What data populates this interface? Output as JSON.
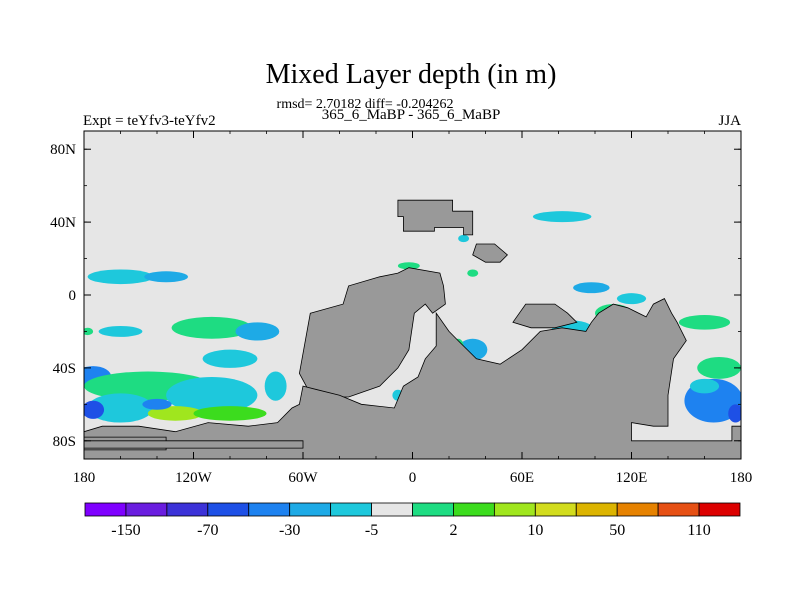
{
  "chart_data": {
    "type": "heatmap",
    "title": "Mixed Layer depth (in m)",
    "stats_line": "rmsd= 2.70182 diff= -0.204262",
    "left_label": "Expt = teYfv3-teYfv2",
    "center_label": "365_6_MaBP - 365_6_MaBP",
    "right_label": "JJA",
    "xlim": [
      -180,
      180
    ],
    "ylim": [
      -90,
      90
    ],
    "x_ticks": [
      {
        "value": -180,
        "label": "180"
      },
      {
        "value": -120,
        "label": "120W"
      },
      {
        "value": -60,
        "label": "60W"
      },
      {
        "value": 0,
        "label": "0"
      },
      {
        "value": 60,
        "label": "60E"
      },
      {
        "value": 120,
        "label": "120E"
      },
      {
        "value": 180,
        "label": "180"
      }
    ],
    "y_ticks": [
      {
        "value": 80,
        "label": "80N"
      },
      {
        "value": 40,
        "label": "40N"
      },
      {
        "value": 0,
        "label": "0"
      },
      {
        "value": -40,
        "label": "40S"
      },
      {
        "value": -80,
        "label": "80S"
      }
    ],
    "colors": {
      "background_field": "#e6e6e6",
      "land": "#999999"
    },
    "colorbar": {
      "colors": [
        "#7f00ff",
        "#6a1ddf",
        "#3c32d8",
        "#1e50e6",
        "#1e82f0",
        "#1eaae6",
        "#1ec8dc",
        "#e6e6e6",
        "#1edc82",
        "#3cdc1e",
        "#a0e61e",
        "#d2dc1e",
        "#dcb400",
        "#e68200",
        "#e65014",
        "#dc0000"
      ],
      "labels": [
        {
          "after_box": 1,
          "label": "-150"
        },
        {
          "after_box": 3,
          "label": "-70"
        },
        {
          "after_box": 5,
          "label": "-30"
        },
        {
          "after_box": 7,
          "label": "-5"
        },
        {
          "after_box": 9,
          "label": "2"
        },
        {
          "after_box": 11,
          "label": "10"
        },
        {
          "after_box": 13,
          "label": "50"
        },
        {
          "after_box": 15,
          "label": "110"
        }
      ]
    },
    "land_polygons": [
      [
        [
          -8,
          52
        ],
        [
          22,
          52
        ],
        [
          22,
          46
        ],
        [
          33,
          46
        ],
        [
          33,
          33
        ],
        [
          28,
          33
        ],
        [
          28,
          37
        ],
        [
          12,
          37
        ],
        [
          12,
          35
        ],
        [
          -5,
          35
        ],
        [
          -5,
          43
        ],
        [
          -8,
          43
        ]
      ],
      [
        [
          -56,
          -10
        ],
        [
          -38,
          -5
        ],
        [
          -35,
          5
        ],
        [
          -18,
          10
        ],
        [
          -8,
          12
        ],
        [
          -2,
          15
        ],
        [
          15,
          12
        ],
        [
          17,
          5
        ],
        [
          18,
          -5
        ],
        [
          11,
          -10
        ],
        [
          7,
          -5
        ],
        [
          1,
          -10
        ],
        [
          -2,
          -30
        ],
        [
          -8,
          -40
        ],
        [
          -18,
          -50
        ],
        [
          -35,
          -56
        ],
        [
          -55,
          -56
        ],
        [
          -62,
          -43
        ]
      ],
      [
        [
          -62,
          -60
        ],
        [
          -60,
          -50
        ],
        [
          -52,
          -52
        ],
        [
          -40,
          -55
        ],
        [
          -28,
          -60
        ],
        [
          -10,
          -62
        ],
        [
          -5,
          -50
        ],
        [
          3,
          -45
        ],
        [
          7,
          -35
        ],
        [
          13,
          -28
        ],
        [
          13,
          -10
        ],
        [
          20,
          -20
        ],
        [
          25,
          -25
        ],
        [
          35,
          -35
        ],
        [
          48,
          -38
        ],
        [
          60,
          -30
        ],
        [
          70,
          -20
        ],
        [
          82,
          -18
        ],
        [
          95,
          -20
        ],
        [
          98,
          -15
        ],
        [
          102,
          -10
        ],
        [
          110,
          -5
        ],
        [
          118,
          -7
        ],
        [
          128,
          -12
        ],
        [
          132,
          -5
        ],
        [
          138,
          -2
        ],
        [
          142,
          -10
        ],
        [
          145,
          -15
        ],
        [
          150,
          -25
        ],
        [
          143,
          -35
        ],
        [
          140,
          -55
        ],
        [
          140,
          -72
        ],
        [
          132,
          -72
        ],
        [
          120,
          -70
        ],
        [
          120,
          -80
        ],
        [
          175,
          -80
        ],
        [
          175,
          -72
        ],
        [
          180,
          -72
        ],
        [
          180,
          -90
        ],
        [
          -180,
          -90
        ],
        [
          -180,
          -75
        ],
        [
          -170,
          -72
        ],
        [
          -150,
          -72
        ],
        [
          -130,
          -75
        ],
        [
          -112,
          -70
        ],
        [
          -90,
          -72
        ],
        [
          -74,
          -70
        ],
        [
          -66,
          -62
        ]
      ],
      [
        [
          -180,
          -85
        ],
        [
          -180,
          -78
        ],
        [
          -135,
          -78
        ],
        [
          -135,
          -85
        ]
      ],
      [
        [
          -180,
          -84
        ],
        [
          -180,
          -80
        ],
        [
          -60,
          -80
        ],
        [
          -60,
          -84
        ]
      ],
      [
        [
          35,
          28
        ],
        [
          45,
          28
        ],
        [
          52,
          22
        ],
        [
          48,
          18
        ],
        [
          40,
          18
        ],
        [
          33,
          22
        ]
      ],
      [
        [
          55,
          -15
        ],
        [
          62,
          -5
        ],
        [
          78,
          -5
        ],
        [
          85,
          -10
        ],
        [
          90,
          -15
        ],
        [
          78,
          -18
        ],
        [
          65,
          -18
        ]
      ]
    ],
    "anomaly_patches": [
      {
        "cx": -160,
        "cy": 10,
        "rx": 18,
        "ry": 4,
        "color": "#1ec8dc"
      },
      {
        "cx": -135,
        "cy": 10,
        "rx": 12,
        "ry": 3,
        "color": "#1eaae6"
      },
      {
        "cx": -110,
        "cy": -18,
        "rx": 22,
        "ry": 6,
        "color": "#1edc82"
      },
      {
        "cx": -85,
        "cy": -20,
        "rx": 12,
        "ry": 5,
        "color": "#1eaae6"
      },
      {
        "cx": -100,
        "cy": -35,
        "rx": 15,
        "ry": 5,
        "color": "#1ec8dc"
      },
      {
        "cx": -160,
        "cy": -20,
        "rx": 12,
        "ry": 3,
        "color": "#1ec8dc"
      },
      {
        "cx": -175,
        "cy": -45,
        "rx": 10,
        "ry": 6,
        "color": "#1e82f0"
      },
      {
        "cx": -145,
        "cy": -50,
        "rx": 35,
        "ry": 8,
        "color": "#1edc82"
      },
      {
        "cx": -110,
        "cy": -55,
        "rx": 25,
        "ry": 10,
        "color": "#1ec8dc"
      },
      {
        "cx": -160,
        "cy": -62,
        "rx": 18,
        "ry": 8,
        "color": "#1ec8dc"
      },
      {
        "cx": -130,
        "cy": -65,
        "rx": 15,
        "ry": 4,
        "color": "#a0e61e"
      },
      {
        "cx": -100,
        "cy": -65,
        "rx": 20,
        "ry": 4,
        "color": "#3cdc1e"
      },
      {
        "cx": -175,
        "cy": -63,
        "rx": 6,
        "ry": 5,
        "color": "#1e50e6"
      },
      {
        "cx": -140,
        "cy": -60,
        "rx": 8,
        "ry": 3,
        "color": "#1e82f0"
      },
      {
        "cx": -75,
        "cy": -50,
        "rx": 6,
        "ry": 8,
        "color": "#1ec8dc"
      },
      {
        "cx": -43,
        "cy": -15,
        "rx": 4,
        "ry": 4,
        "color": "#1ec8dc"
      },
      {
        "cx": -40,
        "cy": -60,
        "rx": 5,
        "ry": 3,
        "color": "#1eaae6"
      },
      {
        "cx": -8,
        "cy": -55,
        "rx": 3,
        "ry": 3,
        "color": "#1ec8dc"
      },
      {
        "cx": 82,
        "cy": 43,
        "rx": 16,
        "ry": 3,
        "color": "#1ec8dc"
      },
      {
        "cx": 28,
        "cy": 31,
        "rx": 3,
        "ry": 2,
        "color": "#1ec8dc"
      },
      {
        "cx": -2,
        "cy": 16,
        "rx": 6,
        "ry": 2,
        "color": "#1edc82"
      },
      {
        "cx": 33,
        "cy": 12,
        "rx": 3,
        "ry": 2,
        "color": "#1edc82"
      },
      {
        "cx": 10,
        "cy": -3,
        "rx": 2,
        "ry": 2,
        "color": "#1ec8dc"
      },
      {
        "cx": 33,
        "cy": -30,
        "rx": 8,
        "ry": 6,
        "color": "#1eaae6"
      },
      {
        "cx": 25,
        "cy": -28,
        "rx": 3,
        "ry": 4,
        "color": "#1edc82"
      },
      {
        "cx": 88,
        "cy": -20,
        "rx": 12,
        "ry": 6,
        "color": "#1ec8dc"
      },
      {
        "cx": 110,
        "cy": -10,
        "rx": 10,
        "ry": 5,
        "color": "#1edc82"
      },
      {
        "cx": 125,
        "cy": -30,
        "rx": 6,
        "ry": 6,
        "color": "#1eaae6"
      },
      {
        "cx": 98,
        "cy": 4,
        "rx": 10,
        "ry": 3,
        "color": "#1eaae6"
      },
      {
        "cx": 120,
        "cy": -2,
        "rx": 8,
        "ry": 3,
        "color": "#1ec8dc"
      },
      {
        "cx": 160,
        "cy": -15,
        "rx": 14,
        "ry": 4,
        "color": "#1edc82"
      },
      {
        "cx": 168,
        "cy": -40,
        "rx": 12,
        "ry": 6,
        "color": "#1edc82"
      },
      {
        "cx": 165,
        "cy": -58,
        "rx": 16,
        "ry": 12,
        "color": "#1e82f0"
      },
      {
        "cx": 160,
        "cy": -50,
        "rx": 8,
        "ry": 4,
        "color": "#1ec8dc"
      },
      {
        "cx": 177,
        "cy": -65,
        "rx": 4,
        "ry": 5,
        "color": "#1e50e6"
      },
      {
        "cx": -178,
        "cy": -20,
        "rx": 3,
        "ry": 2,
        "color": "#1edc82"
      }
    ]
  }
}
